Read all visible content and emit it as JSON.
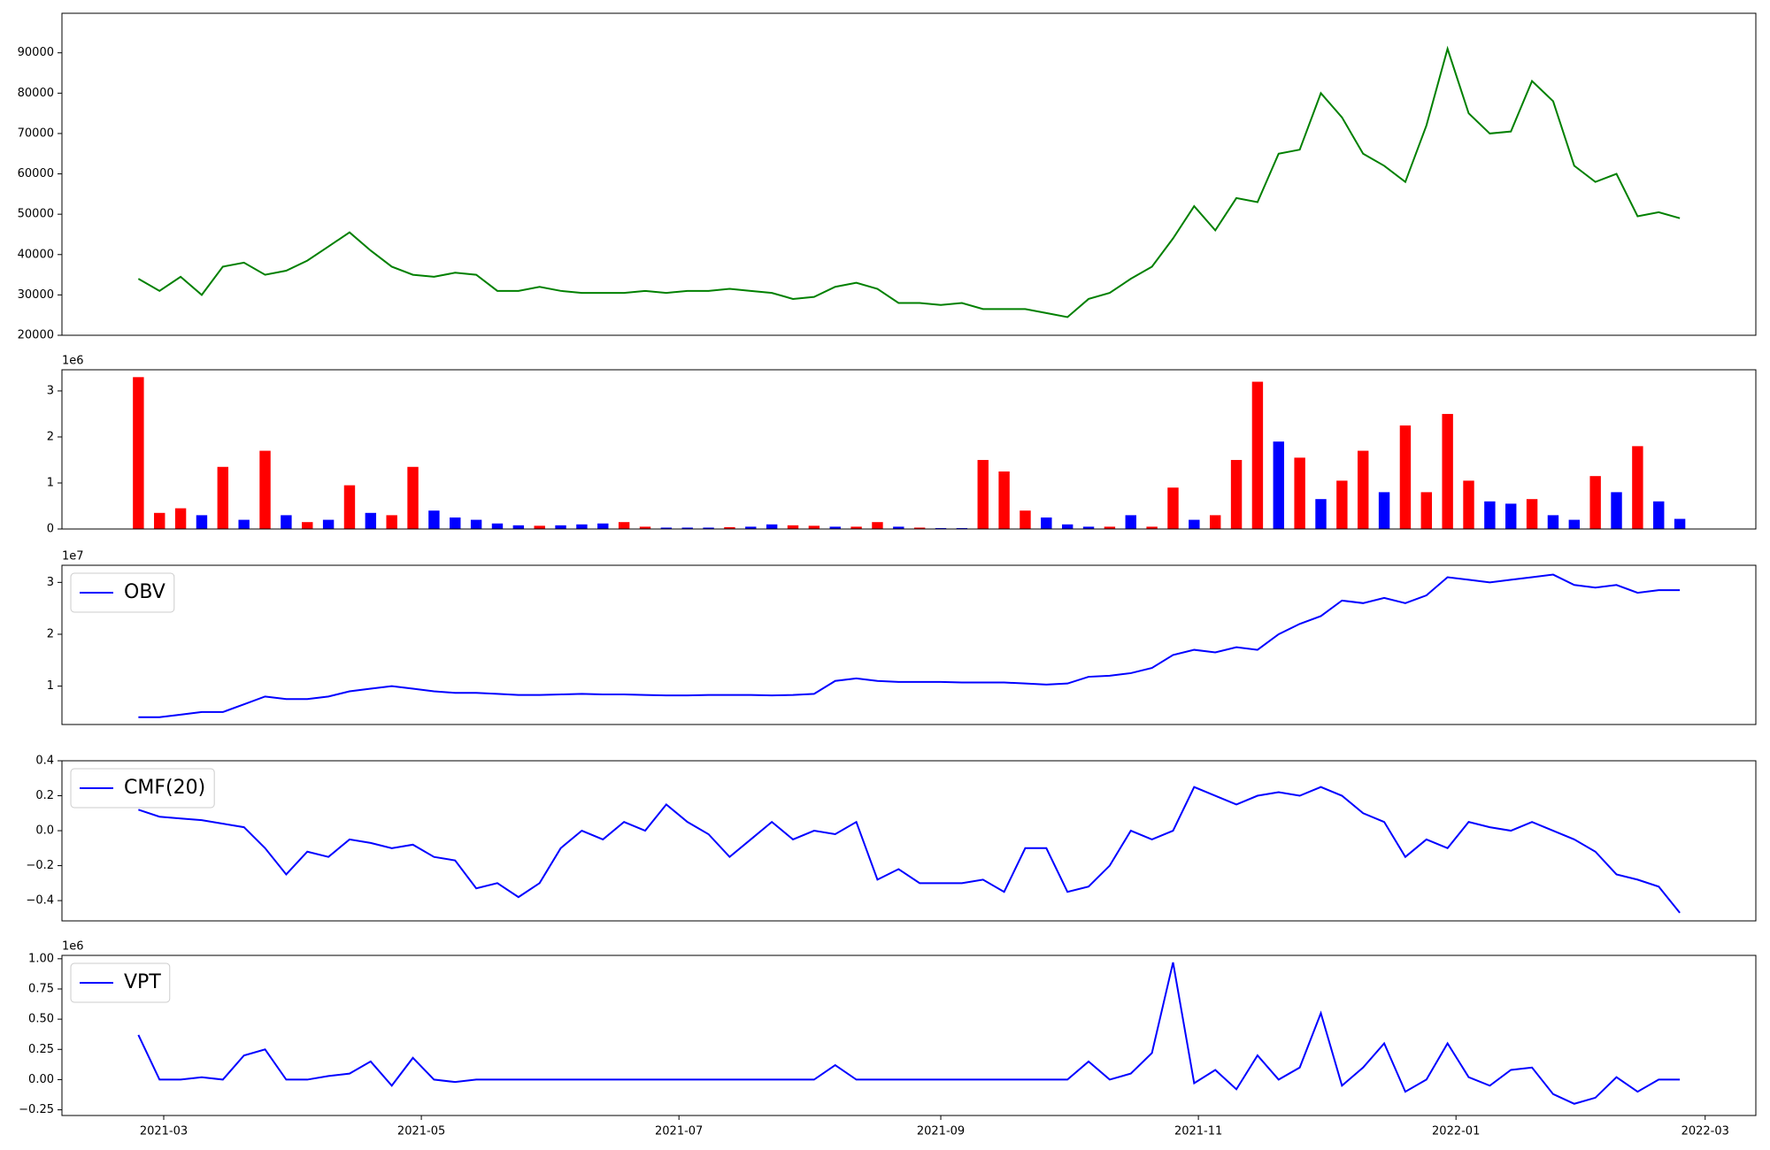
{
  "chart_data": [
    {
      "type": "line",
      "x": [
        -6,
        -1,
        4,
        9,
        14,
        19,
        24,
        29,
        34,
        39,
        44,
        49,
        54,
        59,
        64,
        69,
        74,
        79,
        84,
        89,
        94,
        99,
        104,
        109,
        114,
        119,
        124,
        129,
        134,
        139,
        144,
        149,
        154,
        159,
        164,
        169,
        174,
        179,
        184,
        189,
        194,
        199,
        204,
        209,
        214,
        219,
        224,
        229,
        234,
        239,
        244,
        249,
        254,
        259,
        264,
        269,
        274,
        279,
        284,
        289,
        294,
        299,
        304,
        309,
        314,
        319,
        324,
        329,
        334,
        339,
        344,
        349,
        354,
        359
      ],
      "xlim": [
        -24.1,
        377
      ],
      "ylim": [
        20000,
        99800
      ],
      "yticks": [
        20000,
        30000,
        40000,
        50000,
        60000,
        70000,
        80000,
        90000
      ],
      "series": [
        {
          "color": "#008000",
          "values": [
            34000,
            31000,
            34500,
            30000,
            37000,
            38000,
            35000,
            36000,
            38500,
            42000,
            45500,
            41000,
            37000,
            35000,
            34500,
            35500,
            35000,
            31000,
            31000,
            32000,
            31000,
            30500,
            30500,
            30500,
            31000,
            30500,
            31000,
            31000,
            31500,
            31000,
            30500,
            29000,
            29500,
            32000,
            33000,
            31500,
            28000,
            28000,
            27500,
            28000,
            26500,
            26500,
            26500,
            25500,
            24500,
            29000,
            30500,
            34000,
            37000,
            44000,
            52000,
            46000,
            54000,
            53000,
            65000,
            66000,
            80000,
            74000,
            65000,
            62000,
            58000,
            72000,
            91000,
            75000,
            70000,
            70500,
            83000,
            78000,
            62000,
            58000,
            60000,
            49500,
            50500,
            49000
          ]
        }
      ]
    },
    {
      "type": "bar",
      "x": [
        -6,
        -1,
        4,
        9,
        14,
        19,
        24,
        29,
        34,
        39,
        44,
        49,
        54,
        59,
        64,
        69,
        74,
        79,
        84,
        89,
        94,
        99,
        104,
        109,
        114,
        119,
        124,
        129,
        134,
        139,
        144,
        149,
        154,
        159,
        164,
        169,
        174,
        179,
        184,
        189,
        194,
        199,
        204,
        209,
        214,
        219,
        224,
        229,
        234,
        239,
        244,
        249,
        254,
        259,
        264,
        269,
        274,
        279,
        284,
        289,
        294,
        299,
        304,
        309,
        314,
        319,
        324,
        329,
        334,
        339,
        344,
        349,
        354,
        359
      ],
      "xlim": [
        -24.1,
        377
      ],
      "ylim": [
        0,
        3.46
      ],
      "yticks": [
        0,
        1,
        2,
        3
      ],
      "offset_label": "1e6",
      "series": [
        {
          "values": [
            3.3,
            0.35,
            0.45,
            0.3,
            1.35,
            0.2,
            1.7,
            0.3,
            0.15,
            0.2,
            0.95,
            0.35,
            0.3,
            1.35,
            0.4,
            0.25,
            0.2,
            0.12,
            0.08,
            0.07,
            0.08,
            0.1,
            0.12,
            0.15,
            0.05,
            0.03,
            0.03,
            0.03,
            0.04,
            0.05,
            0.1,
            0.08,
            0.07,
            0.05,
            0.05,
            0.15,
            0.05,
            0.03,
            0.02,
            0.02,
            1.5,
            1.25,
            0.4,
            0.25,
            0.1,
            0.05,
            0.05,
            0.3,
            0.05,
            0.9,
            0.2,
            0.3,
            1.5,
            3.2,
            1.9,
            1.55,
            0.65,
            1.05,
            1.7,
            0.8,
            2.25,
            0.8,
            2.5,
            1.05,
            0.6,
            0.55,
            0.65,
            0.3,
            0.2,
            1.15,
            0.8,
            1.8,
            0.6,
            0.22
          ],
          "colors": [
            "red",
            "red",
            "red",
            "blue",
            "red",
            "blue",
            "red",
            "blue",
            "red",
            "blue",
            "red",
            "blue",
            "red",
            "red",
            "blue",
            "blue",
            "blue",
            "blue",
            "blue",
            "red",
            "blue",
            "blue",
            "blue",
            "red",
            "red",
            "blue",
            "blue",
            "blue",
            "red",
            "blue",
            "blue",
            "red",
            "red",
            "blue",
            "red",
            "red",
            "blue",
            "red",
            "blue",
            "blue",
            "red",
            "red",
            "red",
            "blue",
            "blue",
            "blue",
            "red",
            "blue",
            "red",
            "red",
            "blue",
            "red",
            "red",
            "red",
            "blue",
            "red",
            "blue",
            "red",
            "red",
            "blue",
            "red",
            "red",
            "red",
            "red",
            "blue",
            "blue",
            "red",
            "blue",
            "blue",
            "red",
            "blue",
            "red",
            "blue",
            "blue"
          ]
        }
      ]
    },
    {
      "type": "line",
      "x": [
        -6,
        -1,
        4,
        9,
        14,
        19,
        24,
        29,
        34,
        39,
        44,
        49,
        54,
        59,
        64,
        69,
        74,
        79,
        84,
        89,
        94,
        99,
        104,
        109,
        114,
        119,
        124,
        129,
        134,
        139,
        144,
        149,
        154,
        159,
        164,
        169,
        174,
        179,
        184,
        189,
        194,
        199,
        204,
        209,
        214,
        219,
        224,
        229,
        234,
        239,
        244,
        249,
        254,
        259,
        264,
        269,
        274,
        279,
        284,
        289,
        294,
        299,
        304,
        309,
        314,
        319,
        324,
        329,
        334,
        339,
        344,
        349,
        354,
        359
      ],
      "xlim": [
        -24.1,
        377
      ],
      "ylim": [
        0.26,
        3.33
      ],
      "yticks": [
        1,
        2,
        3
      ],
      "offset_label": "1e7",
      "legend": "upper left",
      "series": [
        {
          "name": "OBV",
          "color": "blue",
          "values": [
            0.4,
            0.4,
            0.45,
            0.5,
            0.5,
            0.65,
            0.8,
            0.75,
            0.75,
            0.8,
            0.9,
            0.95,
            1.0,
            0.95,
            0.9,
            0.87,
            0.87,
            0.85,
            0.83,
            0.83,
            0.84,
            0.85,
            0.84,
            0.84,
            0.83,
            0.82,
            0.82,
            0.83,
            0.83,
            0.83,
            0.82,
            0.83,
            0.85,
            1.1,
            1.15,
            1.1,
            1.08,
            1.08,
            1.08,
            1.07,
            1.07,
            1.07,
            1.05,
            1.03,
            1.05,
            1.18,
            1.2,
            1.25,
            1.35,
            1.6,
            1.7,
            1.65,
            1.75,
            1.7,
            2.0,
            2.2,
            2.35,
            2.65,
            2.6,
            2.7,
            2.6,
            2.75,
            3.1,
            3.05,
            3.0,
            3.05,
            3.1,
            3.15,
            2.95,
            2.9,
            2.95,
            2.8,
            2.85,
            2.85
          ]
        }
      ]
    },
    {
      "type": "line",
      "x": [
        -6,
        -1,
        4,
        9,
        14,
        19,
        24,
        29,
        34,
        39,
        44,
        49,
        54,
        59,
        64,
        69,
        74,
        79,
        84,
        89,
        94,
        99,
        104,
        109,
        114,
        119,
        124,
        129,
        134,
        139,
        144,
        149,
        154,
        159,
        164,
        169,
        174,
        179,
        184,
        189,
        194,
        199,
        204,
        209,
        214,
        219,
        224,
        229,
        234,
        239,
        244,
        249,
        254,
        259,
        264,
        269,
        274,
        279,
        284,
        289,
        294,
        299,
        304,
        309,
        314,
        319,
        324,
        329,
        334,
        339,
        344,
        349,
        354,
        359
      ],
      "xlim": [
        -24.1,
        377
      ],
      "ylim": [
        -0.516,
        0.4
      ],
      "yticks": [
        {
          "value": -0.4,
          "label": "−0.4"
        },
        {
          "value": -0.2,
          "label": "−0.2"
        },
        {
          "value": 0,
          "label": "0.0"
        },
        0.2,
        0.4
      ],
      "legend": "upper left",
      "series": [
        {
          "name": "CMF(20)",
          "color": "blue",
          "values": [
            0.12,
            0.08,
            0.07,
            0.06,
            0.04,
            0.02,
            -0.1,
            -0.25,
            -0.12,
            -0.15,
            -0.05,
            -0.07,
            -0.1,
            -0.08,
            -0.15,
            -0.17,
            -0.33,
            -0.3,
            -0.38,
            -0.3,
            -0.1,
            0.0,
            -0.05,
            0.05,
            0.0,
            0.15,
            0.05,
            -0.02,
            -0.15,
            -0.05,
            0.05,
            -0.05,
            0.0,
            -0.02,
            0.05,
            -0.28,
            -0.22,
            -0.3,
            -0.3,
            -0.3,
            -0.28,
            -0.35,
            -0.1,
            -0.1,
            -0.35,
            -0.32,
            -0.2,
            0.0,
            -0.05,
            0.0,
            0.25,
            0.2,
            0.15,
            0.2,
            0.22,
            0.2,
            0.25,
            0.2,
            0.1,
            0.05,
            -0.15,
            -0.05,
            -0.1,
            0.05,
            0.02,
            0.0,
            0.05,
            0.0,
            -0.05,
            -0.12,
            -0.25,
            -0.28,
            -0.32,
            -0.47
          ]
        }
      ]
    },
    {
      "type": "line",
      "x": [
        -6,
        -1,
        4,
        9,
        14,
        19,
        24,
        29,
        34,
        39,
        44,
        49,
        54,
        59,
        64,
        69,
        74,
        79,
        84,
        89,
        94,
        99,
        104,
        109,
        114,
        119,
        124,
        129,
        134,
        139,
        144,
        149,
        154,
        159,
        164,
        169,
        174,
        179,
        184,
        189,
        194,
        199,
        204,
        209,
        214,
        219,
        224,
        229,
        234,
        239,
        244,
        249,
        254,
        259,
        264,
        269,
        274,
        279,
        284,
        289,
        294,
        299,
        304,
        309,
        314,
        319,
        324,
        329,
        334,
        339,
        344,
        349,
        354,
        359
      ],
      "xlim": [
        -24.1,
        377
      ],
      "ylim": [
        -0.297,
        1.028
      ],
      "offset_label": "1e6",
      "legend": "upper left",
      "yticks": [
        {
          "value": -0.25,
          "label": "−0.25"
        },
        {
          "value": 0,
          "label": "0.00"
        },
        {
          "value": 0.25,
          "label": "0.25"
        },
        {
          "value": 0.5,
          "label": "0.50"
        },
        {
          "value": 0.75,
          "label": "0.75"
        },
        {
          "value": 1,
          "label": "1.00"
        }
      ],
      "xticks": [
        {
          "value": 0,
          "label": "2021-03"
        },
        {
          "value": 61,
          "label": "2021-05"
        },
        {
          "value": 122,
          "label": "2021-07"
        },
        {
          "value": 184,
          "label": "2021-09"
        },
        {
          "value": 245,
          "label": "2021-11"
        },
        {
          "value": 306,
          "label": "2022-01"
        },
        {
          "value": 365,
          "label": "2022-03"
        }
      ],
      "series": [
        {
          "name": "VPT",
          "color": "blue",
          "values": [
            0.37,
            0.0,
            0.0,
            0.02,
            0.0,
            0.2,
            0.25,
            0.0,
            0.0,
            0.03,
            0.05,
            0.15,
            -0.05,
            0.18,
            0.0,
            -0.02,
            0.0,
            0.0,
            0.0,
            0.0,
            0.0,
            0.0,
            0.0,
            0.0,
            0.0,
            0.0,
            0.0,
            0.0,
            0.0,
            0.0,
            0.0,
            0.0,
            0.0,
            0.12,
            0.0,
            0.0,
            0.0,
            0.0,
            0.0,
            0.0,
            0.0,
            0.0,
            0.0,
            0.0,
            0.0,
            0.15,
            0.0,
            0.05,
            0.22,
            0.97,
            -0.03,
            0.08,
            -0.08,
            0.2,
            0.0,
            0.1,
            0.55,
            -0.05,
            0.1,
            0.3,
            -0.1,
            0.0,
            0.3,
            0.02,
            -0.05,
            0.08,
            0.1,
            -0.12,
            -0.2,
            -0.15,
            0.02,
            -0.1,
            0.0,
            0.0
          ]
        }
      ]
    }
  ]
}
